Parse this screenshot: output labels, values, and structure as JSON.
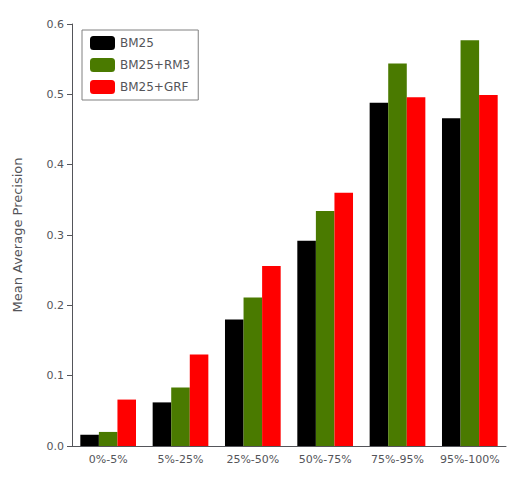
{
  "chart_data": {
    "type": "bar",
    "categories": [
      "0%-5%",
      "5%-25%",
      "25%-50%",
      "50%-75%",
      "75%-95%",
      "95%-100%"
    ],
    "series": [
      {
        "name": "BM25",
        "color": "#000000",
        "values": [
          0.016,
          0.062,
          0.18,
          0.292,
          0.488,
          0.466
        ]
      },
      {
        "name": "BM25+RM3",
        "color": "#4a7a00",
        "values": [
          0.02,
          0.083,
          0.211,
          0.334,
          0.544,
          0.577
        ]
      },
      {
        "name": "BM25+GRF",
        "color": "#ff0000",
        "values": [
          0.066,
          0.13,
          0.256,
          0.36,
          0.496,
          0.499
        ]
      }
    ],
    "ylabel": "Mean Average Precision",
    "ylim": [
      0,
      0.6
    ],
    "yticks": [
      {
        "value": 0,
        "label": "0.0"
      },
      0.1,
      0.2,
      0.3,
      0.4,
      0.5,
      0.6
    ],
    "grid": false,
    "legend": "upper left"
  }
}
